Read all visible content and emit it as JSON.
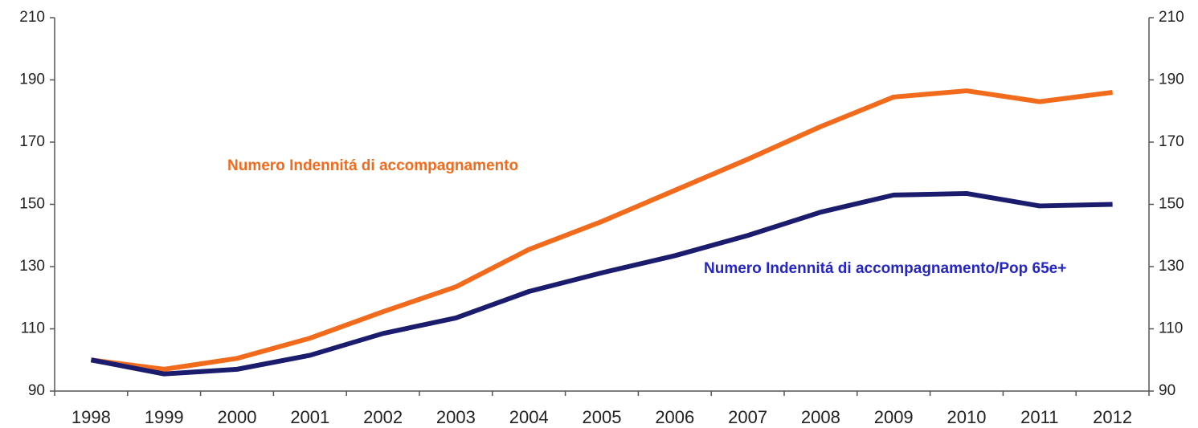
{
  "chart_data": {
    "type": "line",
    "categories": [
      "1998",
      "1999",
      "2000",
      "2001",
      "2002",
      "2003",
      "2004",
      "2005",
      "2006",
      "2007",
      "2008",
      "2009",
      "2010",
      "2011",
      "2012"
    ],
    "series": [
      {
        "name": "Numero Indennitá di accompagnamento",
        "color": "#f26b1d",
        "values": [
          100,
          97,
          100.5,
          107,
          115.5,
          123.5,
          135.5,
          144.5,
          154.5,
          164.5,
          175,
          184.5,
          186.5,
          183,
          186
        ]
      },
      {
        "name": "Numero Indennitá di accompagnamento/Pop 65e+",
        "color": "#1c1c6e",
        "values": [
          100,
          95.5,
          97,
          101.5,
          108.5,
          113.5,
          122,
          128,
          133.5,
          140,
          147.5,
          153,
          153.5,
          149.5,
          150
        ]
      }
    ],
    "ylim": [
      90,
      210
    ],
    "yticks": [
      90,
      110,
      130,
      150,
      170,
      190,
      210
    ],
    "y2lim": [
      90,
      210
    ],
    "y2ticks": [
      90,
      110,
      130,
      150,
      170,
      190,
      210
    ]
  }
}
